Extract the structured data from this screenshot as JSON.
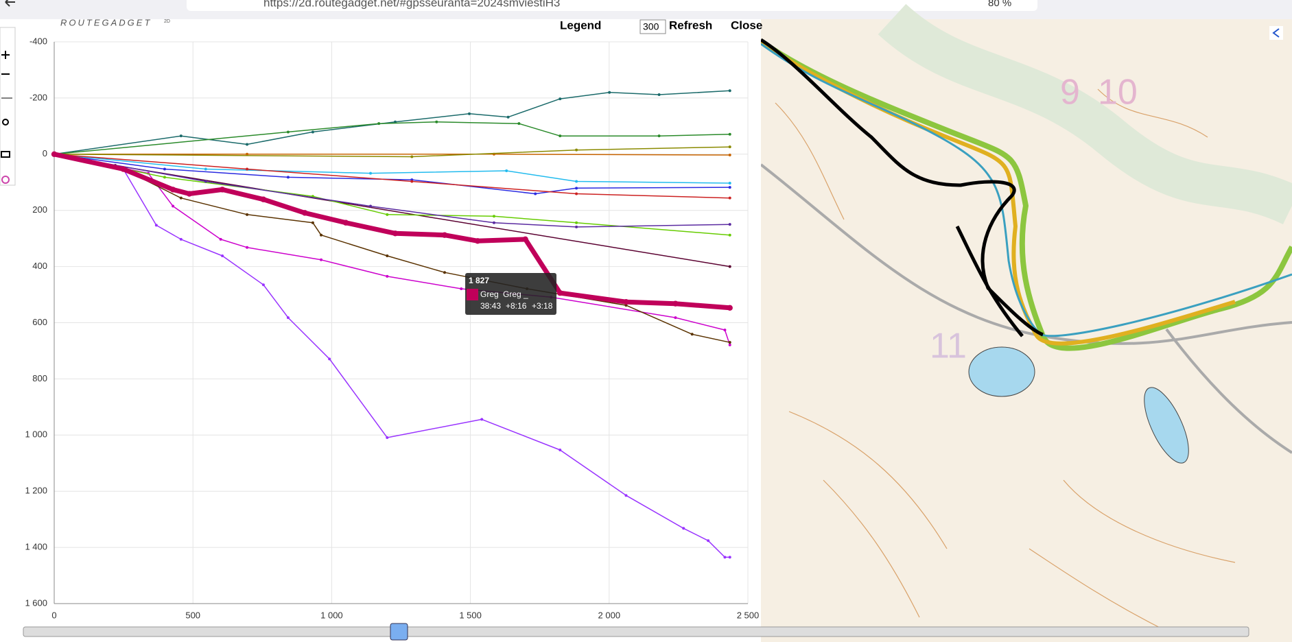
{
  "browser": {
    "url": "https://2d.routegadget.net/#gpsseuranta=2024smviestiH3",
    "zoom": "80 %"
  },
  "toolbar": {
    "logo": "ROUTEGADGET",
    "logo_sup": "2D",
    "legend": "Legend",
    "interval": "300",
    "refresh": "Refresh",
    "close": "Close"
  },
  "map_labels": [
    "9",
    "10",
    "11"
  ],
  "tooltip": {
    "x_label": "1 827",
    "name": "Greg",
    "name2": "Greg _",
    "time": "38:43",
    "diff1": "+8:16",
    "diff2": "+3:18"
  },
  "chart_data": {
    "type": "line",
    "xlim": [
      0,
      2500
    ],
    "xticks": [
      0,
      500,
      {
        "value": 1000,
        "label": "1 000"
      },
      {
        "value": 1500,
        "label": "1 500"
      },
      {
        "value": 2000,
        "label": "2 000"
      },
      {
        "value": 2500,
        "label": "2 500"
      }
    ],
    "ylim": [
      1600,
      -400
    ],
    "yticks": [
      -400,
      -200,
      0,
      200,
      400,
      600,
      800,
      {
        "value": 1000,
        "label": "1 000"
      },
      {
        "value": 1200,
        "label": "1 200"
      },
      {
        "value": 1400,
        "label": "1 400"
      },
      {
        "value": 1600,
        "label": "1 600"
      }
    ],
    "grid": true,
    "series": [
      {
        "color": "#9933ff",
        "width": 1.5,
        "x": [
          0,
          249,
          368,
          457,
          606,
          754,
          843,
          992,
          1200,
          1541,
          1823,
          2061,
          2268,
          2357,
          2417,
          2435
        ],
        "values": [
          0,
          53,
          253,
          303,
          362,
          465,
          582,
          729,
          1009,
          944,
          1053,
          1215,
          1332,
          1376,
          1435,
          1435
        ]
      },
      {
        "color": "#cc00cc",
        "width": 1.5,
        "x": [
          0,
          339,
          428,
          600,
          695,
          962,
          1200,
          1467,
          1791,
          2239,
          2417,
          2435
        ],
        "values": [
          0,
          68,
          185,
          303,
          332,
          376,
          435,
          479,
          509,
          582,
          626,
          679
        ]
      },
      {
        "color": "#5a3200",
        "width": 1.5,
        "x": [
          0,
          249,
          457,
          695,
          932,
          962,
          1200,
          1407,
          1704,
          2061,
          2299,
          2435
        ],
        "values": [
          0,
          53,
          156,
          215,
          244,
          288,
          362,
          421,
          479,
          538,
          641,
          670
        ]
      },
      {
        "color": "#5a0030",
        "width": 1.5,
        "x": [
          0,
          220,
          2435
        ],
        "values": [
          0,
          40,
          400
        ]
      },
      {
        "color": "#1a6a6a",
        "width": 1.5,
        "x": [
          0,
          457,
          695,
          932,
          1229,
          1496,
          1636,
          1823,
          2001,
          2180,
          2435
        ],
        "values": [
          0,
          -65,
          -35,
          -79,
          -115,
          -144,
          -132,
          -197,
          -220,
          -212,
          -226
        ]
      },
      {
        "color": "#2a8a2a",
        "width": 1.5,
        "x": [
          0,
          843,
          1170,
          1378,
          1675,
          1823,
          2180,
          2435
        ],
        "values": [
          0,
          -79,
          -109,
          -115,
          -109,
          -65,
          -65,
          -71
        ]
      },
      {
        "color": "#c86400",
        "width": 1.5,
        "x": [
          0,
          695,
          1585,
          2435
        ],
        "values": [
          0,
          0,
          0,
          3
        ]
      },
      {
        "color": "#8a8a00",
        "width": 1.5,
        "x": [
          0,
          1289,
          1882,
          2435
        ],
        "values": [
          0,
          9,
          -15,
          -26
        ]
      },
      {
        "color": "#2a2ae0",
        "width": 1.5,
        "x": [
          0,
          398,
          843,
          1289,
          1734,
          1882,
          2435
        ],
        "values": [
          0,
          53,
          82,
          91,
          141,
          121,
          118
        ]
      },
      {
        "color": "#22bbee",
        "width": 1.5,
        "x": [
          0,
          546,
          1140,
          1630,
          1882,
          2435
        ],
        "values": [
          0,
          53,
          68,
          59,
          97,
          103
        ]
      },
      {
        "color": "#66cc00",
        "width": 1.5,
        "x": [
          0,
          398,
          932,
          1200,
          1585,
          1882,
          2435
        ],
        "values": [
          0,
          82,
          150,
          215,
          221,
          244,
          288
        ]
      },
      {
        "color": "#5a2aa0",
        "width": 1.5,
        "x": [
          0,
          546,
          1140,
          1585,
          1882,
          2435
        ],
        "values": [
          0,
          97,
          185,
          244,
          259,
          250
        ]
      },
      {
        "color": "#cc2020",
        "width": 1.5,
        "x": [
          0,
          695,
          1289,
          1882,
          2435
        ],
        "values": [
          0,
          53,
          97,
          141,
          156
        ]
      },
      {
        "name": "Greg",
        "color": "#c0005a",
        "width": 7,
        "x": [
          0,
          249,
          428,
          487,
          606,
          754,
          903,
          1051,
          1229,
          1407,
          1526,
          1698,
          1823,
          2061,
          2239,
          2435
        ],
        "values": [
          0,
          53,
          126,
          141,
          126,
          161,
          209,
          244,
          282,
          288,
          309,
          303,
          494,
          526,
          532,
          547
        ]
      }
    ]
  }
}
